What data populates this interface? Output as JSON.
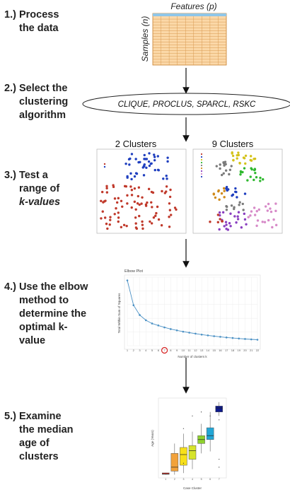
{
  "steps": [
    {
      "num": "1.)",
      "lines": [
        "Process",
        "the data"
      ]
    },
    {
      "num": "2.)",
      "lines": [
        "Select the",
        "clustering",
        "algorithm"
      ]
    },
    {
      "num": "3.)",
      "lines": [
        "Test a",
        "range of",
        "k-values"
      ]
    },
    {
      "num": "4.)",
      "lines": [
        "Use the elbow",
        "method to",
        "determine the",
        "optimal k-",
        "value"
      ]
    },
    {
      "num": "5.)",
      "lines": [
        "Examine",
        "the median",
        "age of",
        "clusters"
      ]
    }
  ],
  "matrix": {
    "features_label": "Features (p)",
    "samples_label": "Samples (n)"
  },
  "algorithms": "CLIQUE, PROCLUS, SPARCL, RSKC",
  "clusters": {
    "left_title": "2 Clusters",
    "right_title": "9 Clusters"
  },
  "colors": {
    "red": "#c0392b",
    "blue": "#1f3fbf",
    "yellow": "#d4c21a",
    "green": "#2fb82f",
    "grey": "#7a7a7a",
    "orange": "#d08a1a",
    "purple": "#8a3fc0",
    "pink": "#d78ac8",
    "elbow_line": "#4a90c4",
    "highlight": "#d62020"
  },
  "chart_data": [
    {
      "type": "line",
      "title": "Elbow Plot",
      "xlabel": "Number of clusters k",
      "ylabel": "Total Within Sum of Squares",
      "x": [
        1,
        2,
        3,
        4,
        5,
        6,
        7,
        8,
        9,
        10,
        11,
        12,
        13,
        14,
        15,
        16,
        17,
        18,
        19,
        20,
        21,
        22
      ],
      "values": [
        100,
        62,
        47,
        39,
        34,
        31,
        28,
        25.5,
        23.5,
        21.5,
        20,
        18.5,
        17,
        15.8,
        14.6,
        13.6,
        12.6,
        11.8,
        11,
        10.3,
        9.7,
        9.2
      ],
      "ylim": [
        0,
        105
      ],
      "highlight_k": 7
    },
    {
      "type": "box",
      "xlabel": "Case Cluster",
      "ylabel": "Age (Years)",
      "categories": [
        "1",
        "2",
        "3",
        "4",
        "5",
        "6",
        "7"
      ],
      "colors": [
        "#d8261e",
        "#f2a23a",
        "#f7e01a",
        "#d6e42a",
        "#8fd22e",
        "#22a6d6",
        "#0e1a8c"
      ],
      "boxes": [
        {
          "q1": 2,
          "median": 3,
          "q3": 5.5,
          "min": 1,
          "max": 6
        },
        {
          "q1": 10,
          "median": 20,
          "q3": 55,
          "min": 1,
          "max": 80
        },
        {
          "q1": 25,
          "median": 52,
          "q3": 70,
          "min": 5,
          "max": 105
        },
        {
          "q1": 40,
          "median": 62,
          "q3": 75,
          "min": 15,
          "max": 110
        },
        {
          "q1": 80,
          "median": 90,
          "q3": 100,
          "min": 55,
          "max": 130
        },
        {
          "q1": 90,
          "median": 100,
          "q3": 120,
          "min": 60,
          "max": 160
        },
        {
          "q1": 160,
          "median": 170,
          "q3": 175,
          "min": 150,
          "max": 185
        }
      ],
      "ylim": [
        0,
        190
      ]
    }
  ]
}
